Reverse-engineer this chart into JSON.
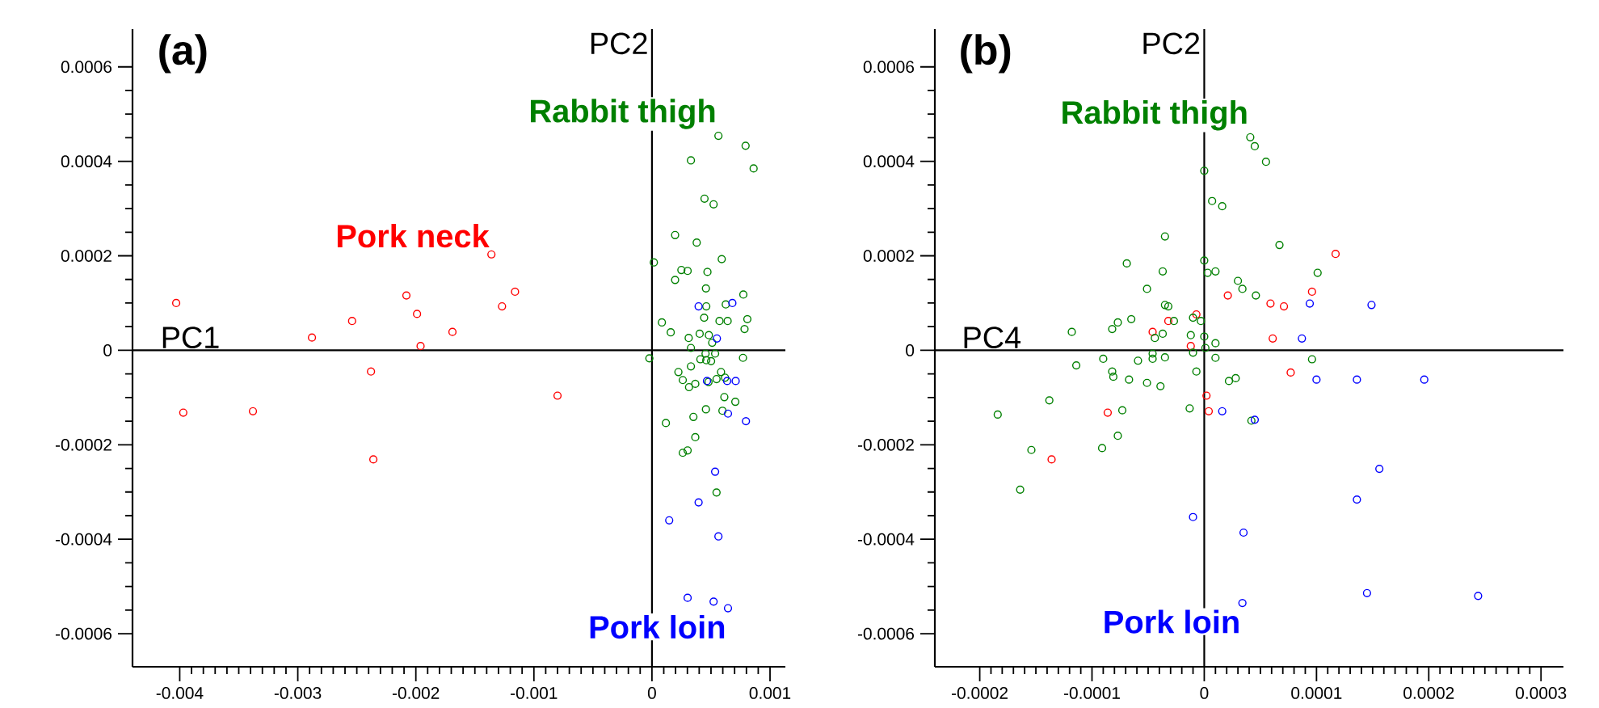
{
  "chart_data": [
    {
      "type": "scatter",
      "title": "(a)",
      "marker": "circle",
      "xlim": [
        -0.0044,
        0.00113
      ],
      "ylim": [
        -0.00067,
        0.00068
      ],
      "xticks": [
        -0.004,
        -0.003,
        -0.002,
        -0.001,
        0,
        0.001
      ],
      "yticks": [
        -0.0006,
        -0.0004,
        -0.0002,
        0,
        0.0002,
        0.0004,
        0.0006
      ],
      "ref_lines": [
        {
          "axis": "y",
          "value": 0,
          "label": "PC1"
        },
        {
          "axis": "x",
          "value": 0,
          "label": "PC2"
        }
      ],
      "series": [
        {
          "name": "Pork neck",
          "color": "#ff0000",
          "x": [
            -0.00403,
            -0.00397,
            -0.00338,
            -0.00288,
            -0.00254,
            -0.00238,
            -0.00208,
            -0.00199,
            -0.00196,
            -0.00169,
            -0.00236,
            -0.00136,
            -0.00127,
            -0.00116,
            -0.0008
          ],
          "values": [
            0.0001,
            -0.000132,
            -0.000129,
            2.7e-05,
            6.2e-05,
            -4.5e-05,
            0.000116,
            7.7e-05,
            9e-06,
            3.9e-05,
            -0.000231,
            0.000203,
            9.3e-05,
            0.000124,
            -9.6e-05
          ]
        },
        {
          "name": "Rabbit thigh",
          "color": "#008000",
          "x": [
            0.000563,
            0.000793,
            0.00033,
            0.000861,
            0.000445,
            0.000522,
            0.000196,
            0.000379,
            1.6e-05,
            0.000591,
            0.000249,
            0.000302,
            0.000196,
            0.00047,
            0.000457,
            0.000774,
            0.00046,
            0.000625,
            0.000442,
            0.000572,
            0.000641,
            0.000808,
            8.4e-05,
            0.000159,
            0.000784,
            0.000404,
            0.000482,
            0.000311,
            0.00051,
            0.00033,
            -2.2e-05,
            0.000454,
            0.000535,
            0.00041,
            0.00046,
            0.000501,
            0.000771,
            0.00033,
            0.000224,
            0.000585,
            0.000261,
            0.000479,
            0.000547,
            0.000619,
            0.000367,
            0.000314,
            0.000613,
            0.000706,
            0.000457,
            0.000597,
            0.000118,
            0.000351,
            0.000367,
            0.000302,
            0.000261,
            0.000547
          ],
          "values": [
            0.000454,
            0.000433,
            0.000402,
            0.000385,
            0.000321,
            0.000309,
            0.000244,
            0.000228,
            0.000186,
            0.000193,
            0.00017,
            0.000168,
            0.000149,
            0.000166,
            0.000131,
            0.000118,
            9.3e-05,
            9.7e-05,
            6.9e-05,
            6.2e-05,
            6.2e-05,
            6.6e-05,
            5.9e-05,
            3.8e-05,
            4.5e-05,
            3.5e-05,
            3.2e-05,
            2.6e-05,
            1.6e-05,
            5e-06,
            -1.7e-05,
            -7e-06,
            -7e-06,
            -1.9e-05,
            -2.1e-05,
            -2.3e-05,
            -1.6e-05,
            -3.4e-05,
            -4.6e-05,
            -4.6e-05,
            -6.3e-05,
            -6.7e-05,
            -6.1e-05,
            -5.8e-05,
            -7.1e-05,
            -7.8e-05,
            -9.9e-05,
            -0.000109,
            -0.000125,
            -0.000128,
            -0.000154,
            -0.000141,
            -0.000184,
            -0.000212,
            -0.000217,
            -0.000301
          ]
        },
        {
          "name": "Pork loin",
          "color": "#0000ff",
          "x": [
            0.000395,
            0.000681,
            0.00055,
            0.000466,
            0.000637,
            0.000709,
            0.000644,
            0.000796,
            0.000535,
            0.000395,
            0.000146,
            0.000563,
            0.000302,
            0.000522,
            0.000644
          ],
          "values": [
            9.3e-05,
            0.0001,
            2.5e-05,
            -6.5e-05,
            -6.5e-05,
            -6.5e-05,
            -0.000134,
            -0.00015,
            -0.000257,
            -0.000322,
            -0.00036,
            -0.000394,
            -0.000524,
            -0.000532,
            -0.000546
          ]
        }
      ]
    },
    {
      "type": "scatter",
      "title": "(b)",
      "marker": "circle",
      "xlim": [
        -0.00024,
        0.00032
      ],
      "ylim": [
        -0.00067,
        0.00068
      ],
      "xticks": [
        -0.0002,
        -0.0001,
        0,
        0.0001,
        0.0002,
        0.0003
      ],
      "yticks": [
        -0.0006,
        -0.0004,
        -0.0002,
        0,
        0.0002,
        0.0004,
        0.0006
      ],
      "ref_lines": [
        {
          "axis": "y",
          "value": 0,
          "label": "PC4"
        },
        {
          "axis": "x",
          "value": 0,
          "label": "PC2"
        }
      ],
      "series": [
        {
          "color": "#ff0000",
          "x": [
            2.1e-05,
            -7e-06,
            -3.2e-05,
            -4.6e-05,
            -1.2e-05,
            2e-06,
            -8.6e-05,
            4e-06,
            -0.000136,
            0.000117,
            9.6e-05,
            5.9e-05,
            7.1e-05,
            6.1e-05,
            7.7e-05
          ],
          "values": [
            0.000116,
            7.6e-05,
            6.2e-05,
            3.9e-05,
            9e-06,
            -9.6e-05,
            -0.000132,
            -0.000129,
            -0.000231,
            0.000204,
            0.000124,
            9.9e-05,
            9.3e-05,
            2.5e-05,
            -4.7e-05
          ]
        },
        {
          "name": "Rabbit thigh",
          "color": "#008000",
          "x": [
            0.0,
            7e-06,
            1.6e-05,
            -3.5e-05,
            -6.9e-05,
            -3.7e-05,
            0.0,
            3e-06,
            1e-05,
            -5.1e-05,
            -3.5e-05,
            -3.2e-05,
            -2.7e-05,
            -6.5e-05,
            -7.7e-05,
            -8.2e-05,
            -0.000118,
            -1e-05,
            -3e-06,
            -3.7e-05,
            -4.4e-05,
            -1.2e-05,
            0.0,
            1e-05,
            1e-06,
            -4.6e-05,
            -4.6e-05,
            -3.5e-05,
            -9e-05,
            -5.9e-05,
            -1e-05,
            1e-05,
            -0.000114,
            -8.2e-05,
            -8.1e-05,
            -6.7e-05,
            -5.1e-05,
            -3.9e-05,
            -7e-06,
            2.2e-05,
            -0.000138,
            -7.3e-05,
            -1.3e-05,
            -0.000184,
            -7.7e-05,
            -0.000154,
            -9.1e-05,
            -0.000164,
            4.1e-05,
            4.5e-05,
            5.5e-05,
            6.7e-05,
            0.000101,
            3e-05,
            3.4e-05,
            4.6e-05,
            9.6e-05,
            4.2e-05,
            2.8e-05
          ],
          "values": [
            0.00038,
            0.000316,
            0.000305,
            0.000241,
            0.000184,
            0.000167,
            0.00019,
            0.000164,
            0.000167,
            0.00013,
            9.6e-05,
            9.3e-05,
            6.2e-05,
            6.6e-05,
            5.9e-05,
            4.5e-05,
            3.9e-05,
            6.9e-05,
            6.2e-05,
            3.5e-05,
            2.6e-05,
            3.2e-05,
            2.9e-05,
            1.5e-05,
            5e-06,
            -7e-06,
            -1.8e-05,
            -1.5e-05,
            -1.8e-05,
            -2.2e-05,
            -5e-06,
            -1.6e-05,
            -3.2e-05,
            -4.5e-05,
            -5.6e-05,
            -6.2e-05,
            -6.9e-05,
            -7.6e-05,
            -4.5e-05,
            -6.5e-05,
            -0.000106,
            -0.000127,
            -0.000123,
            -0.000136,
            -0.000181,
            -0.000211,
            -0.000207,
            -0.000295,
            0.000451,
            0.000432,
            0.000399,
            0.000223,
            0.000164,
            0.000147,
            0.00013,
            0.000116,
            -1.9e-05,
            -0.000149,
            -5.9e-05
          ]
        },
        {
          "name": "Pork loin",
          "color": "#0000ff",
          "x": [
            1.6e-05,
            -1e-05,
            9.4e-05,
            0.000149,
            8.7e-05,
            0.0001,
            0.000136,
            0.000196,
            4.5e-05,
            0.000156,
            0.000136,
            3.5e-05,
            0.000145,
            0.000244,
            3.4e-05
          ],
          "values": [
            -0.000129,
            -0.000353,
            9.9e-05,
            9.6e-05,
            2.5e-05,
            -6.2e-05,
            -6.2e-05,
            -6.2e-05,
            -0.000147,
            -0.000251,
            -0.000316,
            -0.000386,
            -0.000514,
            -0.00052,
            -0.000535
          ]
        }
      ]
    }
  ]
}
